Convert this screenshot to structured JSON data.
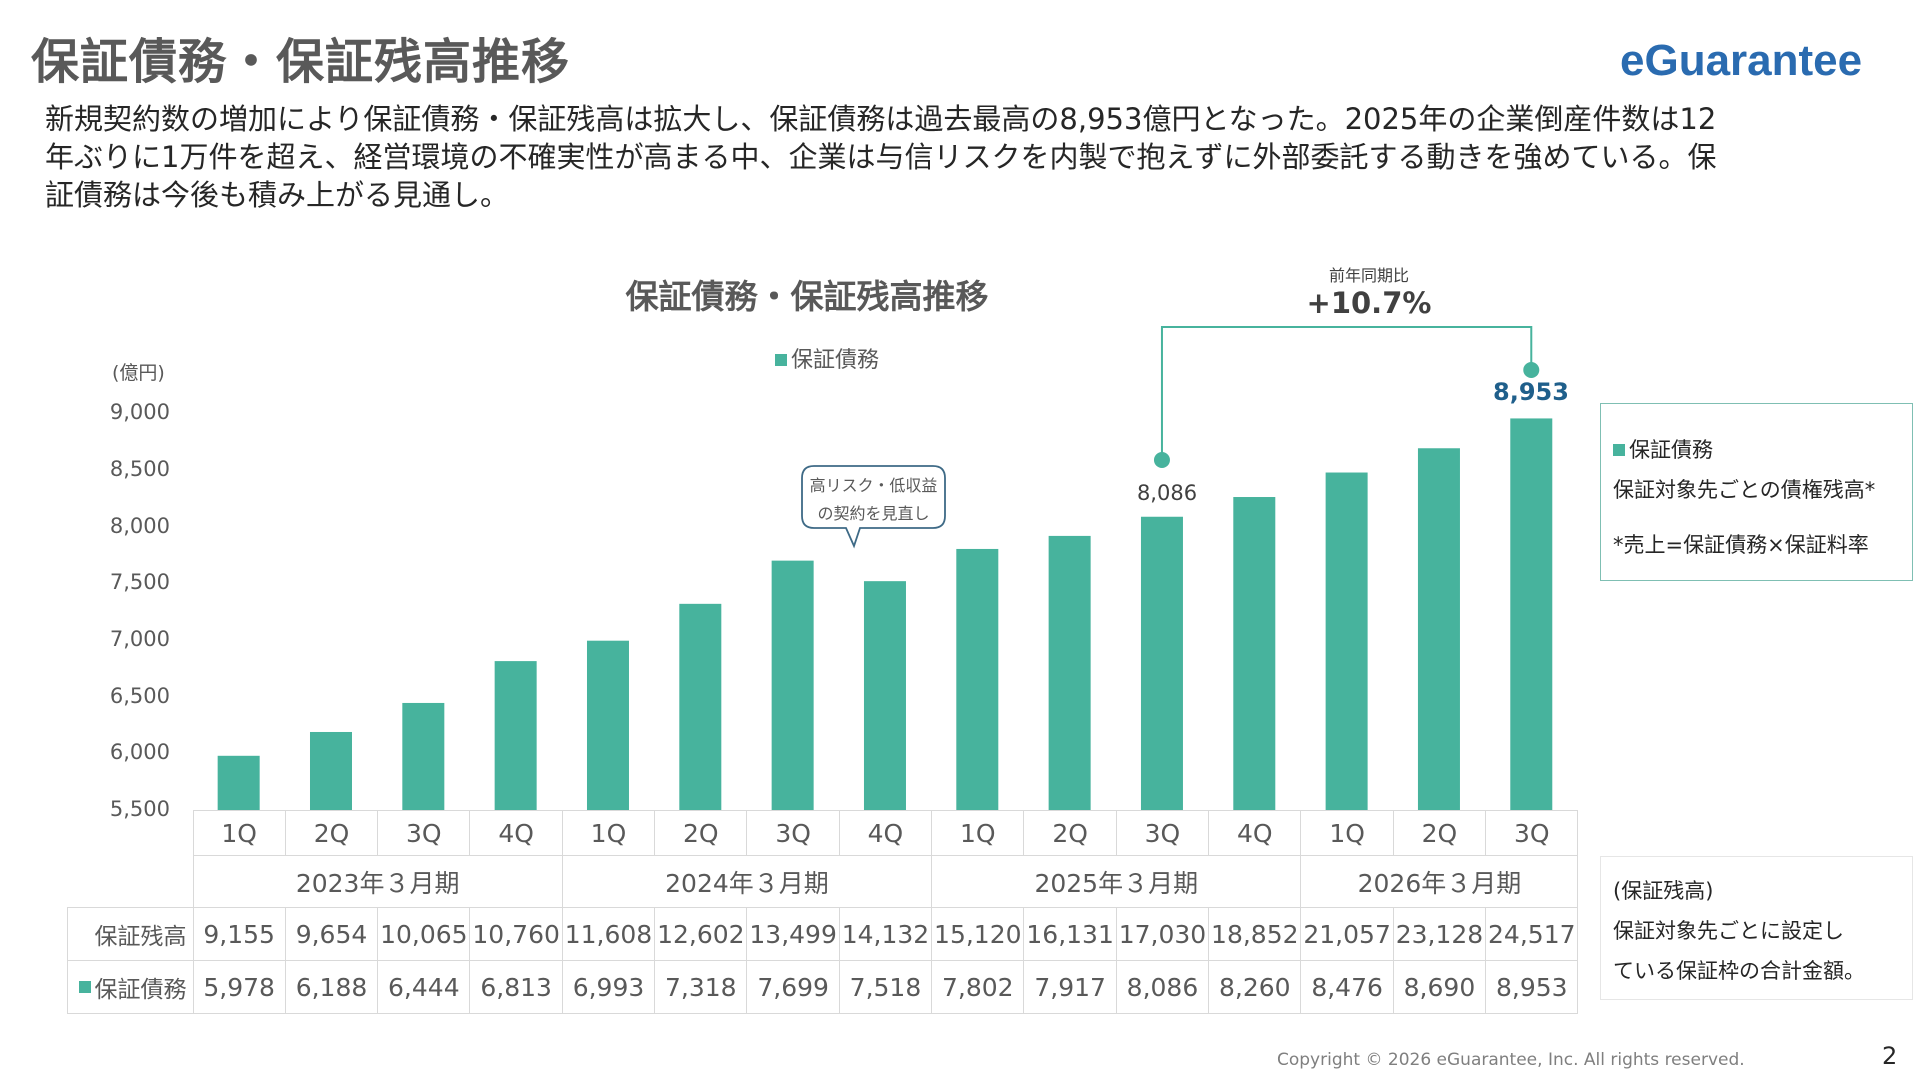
{
  "header": {
    "title": "保証債務・保証残高推移",
    "logo": "eGuarantee"
  },
  "description": [
    "新規契約数の増加により保証債務・保証残高は拡大し、保証債務は過去最高の8,953億円となった。2025年の企業倒産件数は12",
    "年ぶりに1万件を超え、経営環境の不確実性が高まる中、企業は与信リスクを内製で抱えずに外部委託する動きを強めている。保",
    "証債務は今後も積み上がる見通し。"
  ],
  "chart_data": {
    "type": "bar",
    "title": "保証債務・保証残高推移",
    "ylabel": "(億円)",
    "ylim": [
      5500,
      9000
    ],
    "yticks": [
      "9,000",
      "8,500",
      "8,000",
      "7,500",
      "7,000",
      "6,500",
      "6,000",
      "5,500"
    ],
    "ytick_values": [
      9000,
      8500,
      8000,
      7500,
      7000,
      6500,
      6000,
      5500
    ],
    "grid": false,
    "legend": "top",
    "categories": [
      "1Q",
      "2Q",
      "3Q",
      "4Q",
      "1Q",
      "2Q",
      "3Q",
      "4Q",
      "1Q",
      "2Q",
      "3Q",
      "4Q",
      "1Q",
      "2Q",
      "3Q"
    ],
    "groups": [
      {
        "label": "2023年３月期",
        "span": 4
      },
      {
        "label": "2024年３月期",
        "span": 4
      },
      {
        "label": "2025年３月期",
        "span": 4
      },
      {
        "label": "2026年３月期",
        "span": 3
      }
    ],
    "series": [
      {
        "name": "保証債務",
        "color": "#47b39d",
        "values": [
          5978,
          6188,
          6444,
          6813,
          6993,
          7318,
          7699,
          7518,
          7802,
          7917,
          8086,
          8260,
          8476,
          8690,
          8953
        ],
        "labels": [
          "5,978",
          "6,188",
          "6,444",
          "6,813",
          "6,993",
          "7,318",
          "7,699",
          "7,518",
          "7,802",
          "7,917",
          "8,086",
          "8,260",
          "8,476",
          "8,690",
          "8,953"
        ]
      }
    ],
    "table_rows": [
      {
        "name": "保証残高",
        "values": [
          "9,155",
          "9,654",
          "10,065",
          "10,760",
          "11,608",
          "12,602",
          "13,499",
          "14,132",
          "15,120",
          "16,131",
          "17,030",
          "18,852",
          "21,057",
          "23,128",
          "24,517"
        ]
      },
      {
        "name": "保証債務",
        "values": [
          "5,978",
          "6,188",
          "6,444",
          "6,813",
          "6,993",
          "7,318",
          "7,699",
          "7,518",
          "7,802",
          "7,917",
          "8,086",
          "8,260",
          "8,476",
          "8,690",
          "8,953"
        ]
      }
    ],
    "annotations": {
      "yoy_label": "前年同期比",
      "yoy_value": "+10.7%",
      "prev_label": "8,086",
      "latest_label": "8,953",
      "latest_color": "#1f5f8b",
      "bubble": [
        "高リスク・低収益",
        "の契約を見直し"
      ]
    }
  },
  "notes": {
    "debt": {
      "legend": "保証債務",
      "line1": "保証対象先ごとの債権残高*",
      "line2": "*売上=保証債務×保証料率"
    },
    "balance": {
      "title": "(保証残高)",
      "line1": "保証対象先ごとに設定し",
      "line2": "ている保証枠の合計金額。"
    }
  },
  "footer": {
    "copyright": "Copyright © 2026 eGuarantee, Inc. All rights reserved.",
    "page": "2"
  }
}
